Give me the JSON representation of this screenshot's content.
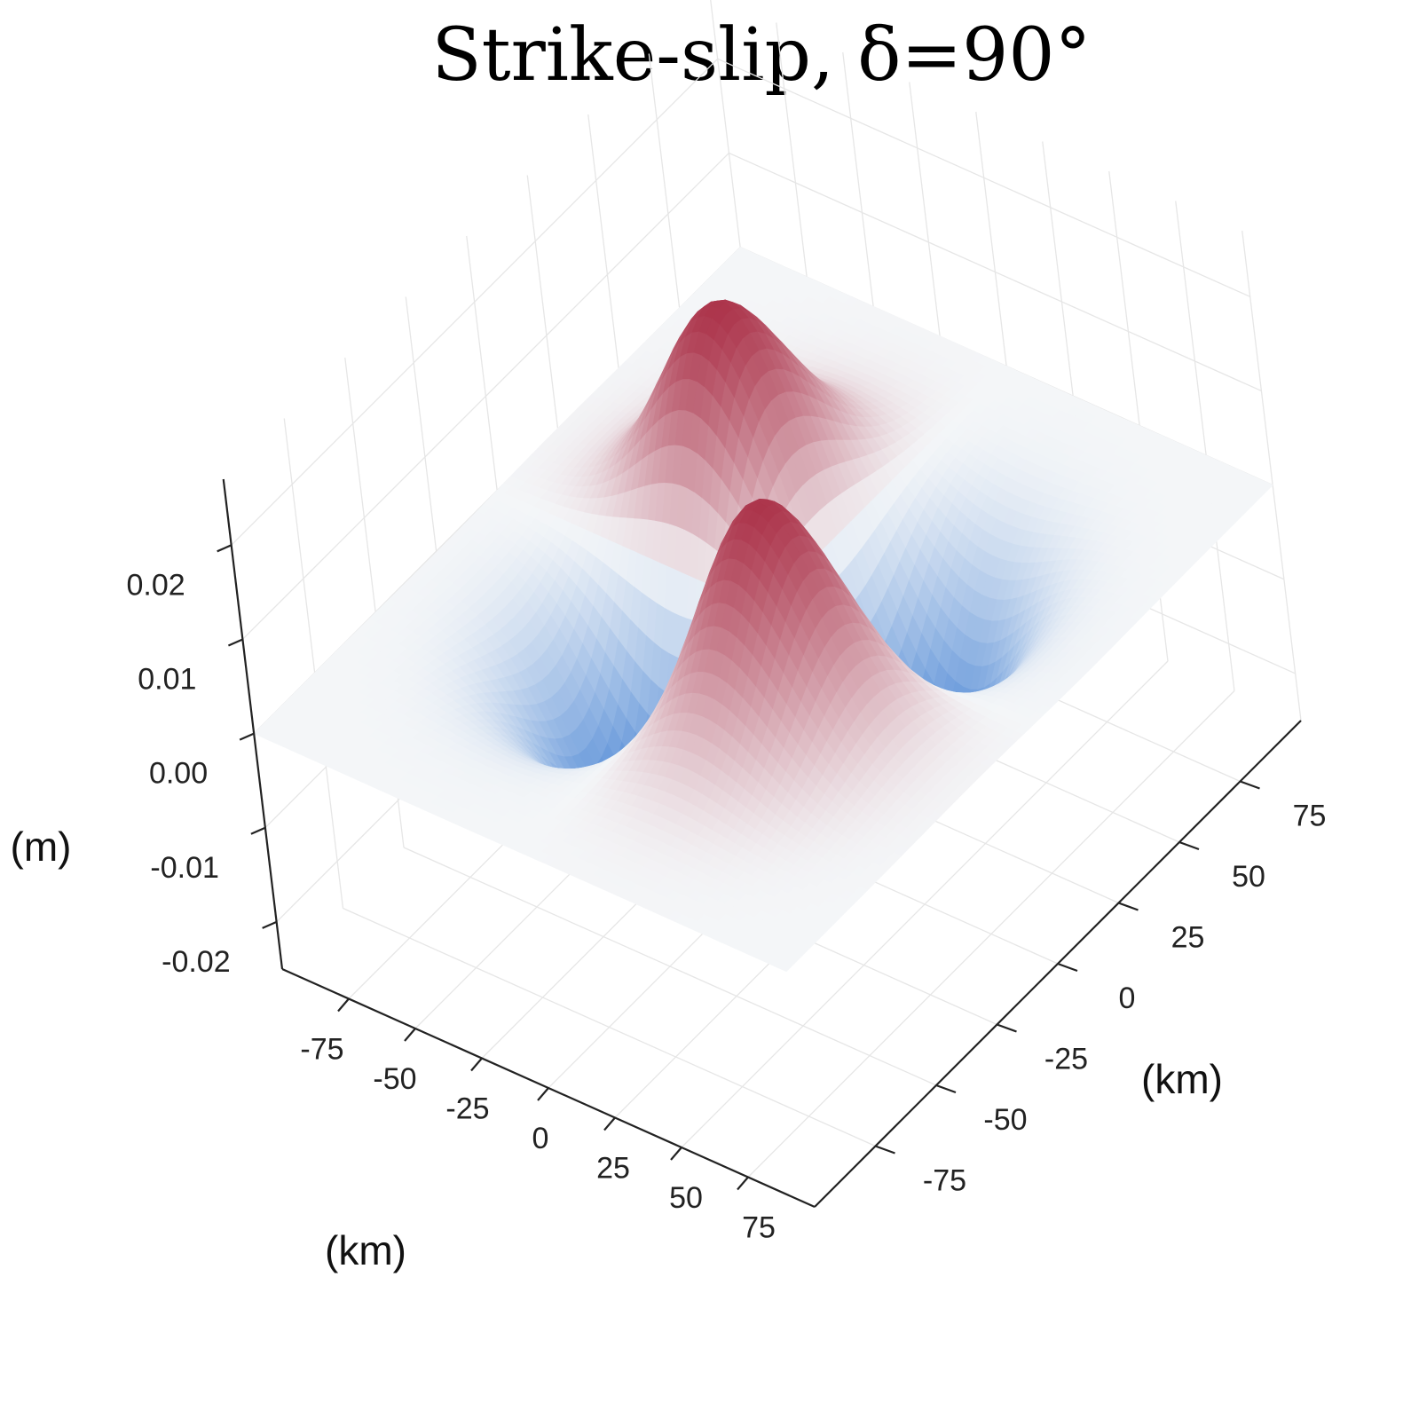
{
  "chart_data": {
    "type": "surface",
    "title": "Strike-slip, δ=90°",
    "x_axis": {
      "label": "(km)",
      "ticks": [
        -75,
        -50,
        -25,
        0,
        25,
        50,
        75
      ],
      "tick_labels": [
        "-75",
        "-50",
        "-25",
        "0",
        "25",
        "50",
        "75"
      ],
      "range": [
        -100,
        100
      ]
    },
    "y_axis": {
      "label": "(km)",
      "ticks": [
        -75,
        -50,
        -25,
        0,
        25,
        50,
        75
      ],
      "tick_labels": [
        "-75",
        "-50",
        "-25",
        "0",
        "25",
        "50",
        "75"
      ],
      "range": [
        -100,
        100
      ]
    },
    "z_axis": {
      "label": "(m)",
      "ticks": [
        -0.02,
        -0.01,
        0.0,
        0.01,
        0.02
      ],
      "tick_labels": [
        "-0.02",
        "-0.01",
        "0.00",
        "0.01",
        "0.02"
      ],
      "range": [
        -0.025,
        0.027
      ]
    },
    "surface": {
      "description_of_features": "four-lobed strike-slip uplift/subsidence pattern",
      "peaks": [
        {
          "x": -30,
          "y": 20,
          "z": 0.026
        },
        {
          "x": 30,
          "y": -20,
          "z": 0.026
        }
      ],
      "troughs": [
        {
          "x": -30,
          "y": -20,
          "z": -0.026
        },
        {
          "x": 30,
          "y": 20,
          "z": -0.026
        }
      ],
      "colorscale": [
        "#0a5bc7",
        "#f4f6f8",
        "#a0142e"
      ],
      "color_range": [
        -0.026,
        0.026
      ]
    },
    "grid": true
  }
}
